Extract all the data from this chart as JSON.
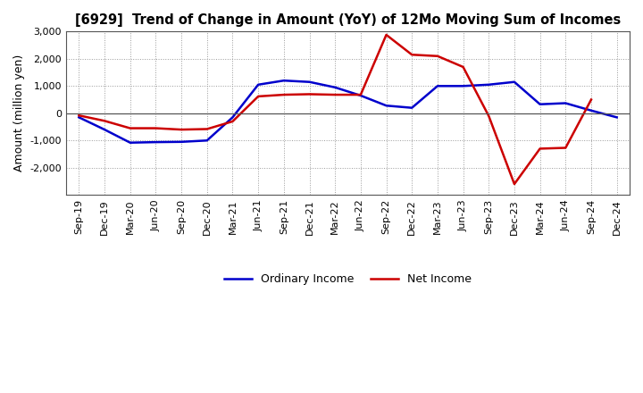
{
  "title": "[6929]  Trend of Change in Amount (YoY) of 12Mo Moving Sum of Incomes",
  "ylabel": "Amount (million yen)",
  "x_labels": [
    "Sep-19",
    "Dec-19",
    "Mar-20",
    "Jun-20",
    "Sep-20",
    "Dec-20",
    "Mar-21",
    "Jun-21",
    "Sep-21",
    "Dec-21",
    "Mar-22",
    "Jun-22",
    "Sep-22",
    "Dec-22",
    "Mar-23",
    "Jun-23",
    "Sep-23",
    "Dec-23",
    "Mar-24",
    "Jun-24",
    "Sep-24",
    "Dec-24"
  ],
  "ordinary_income": [
    -150,
    -600,
    -1080,
    -1060,
    -1050,
    -1000,
    -150,
    1050,
    1200,
    1150,
    950,
    650,
    280,
    200,
    1000,
    1000,
    1050,
    1150,
    330,
    370,
    100,
    -150
  ],
  "net_income": [
    -80,
    -280,
    -550,
    -550,
    -600,
    -580,
    -300,
    620,
    680,
    700,
    680,
    680,
    2880,
    2150,
    2100,
    1700,
    -100,
    -2600,
    -1300,
    -1270,
    500,
    null
  ],
  "ylim": [
    -3000,
    3000
  ],
  "yticks": [
    -2000,
    -1000,
    0,
    1000,
    2000,
    3000
  ],
  "ordinary_color": "#0000cc",
  "net_color": "#cc0000",
  "bg_color": "#ffffff",
  "grid_color": "#999999",
  "linewidth": 1.8,
  "legend_ordinary": "Ordinary Income",
  "legend_net": "Net Income"
}
